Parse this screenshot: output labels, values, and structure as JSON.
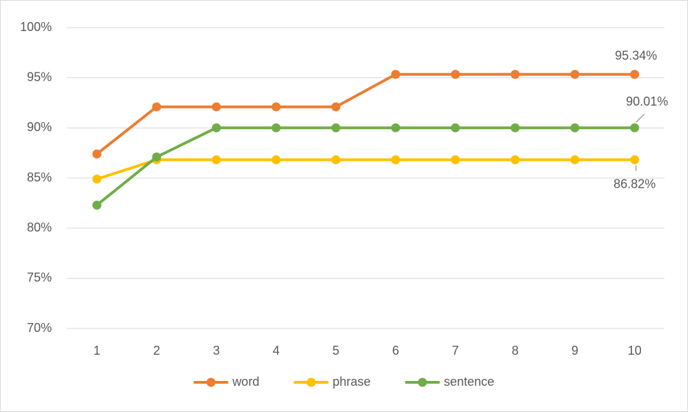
{
  "chart_data": {
    "type": "line",
    "categories": [
      1,
      2,
      3,
      4,
      5,
      6,
      7,
      8,
      9,
      10
    ],
    "series": [
      {
        "name": "word",
        "color": "#ED7D31",
        "values": [
          87.4,
          92.1,
          92.1,
          92.1,
          92.1,
          95.34,
          95.34,
          95.34,
          95.34,
          95.34
        ],
        "value_labels": [
          null,
          null,
          null,
          null,
          null,
          null,
          null,
          null,
          null,
          "95.34%"
        ]
      },
      {
        "name": "phrase",
        "color": "#FFC000",
        "values": [
          84.9,
          86.82,
          86.82,
          86.82,
          86.82,
          86.82,
          86.82,
          86.82,
          86.82,
          86.82
        ],
        "value_labels": [
          null,
          null,
          null,
          null,
          null,
          null,
          null,
          null,
          null,
          "86.82%"
        ]
      },
      {
        "name": "sentence",
        "color": "#70AD47",
        "values": [
          82.3,
          87.1,
          90.01,
          90.01,
          90.01,
          90.01,
          90.01,
          90.01,
          90.01,
          90.01
        ],
        "value_labels": [
          null,
          null,
          null,
          null,
          null,
          null,
          null,
          null,
          null,
          "90.01%"
        ]
      }
    ],
    "ylim": [
      70,
      100
    ],
    "yticks": [
      {
        "value": 70,
        "label": "70%"
      },
      {
        "value": 75,
        "label": "75%"
      },
      {
        "value": 80,
        "label": "80%"
      },
      {
        "value": 85,
        "label": "85%"
      },
      {
        "value": 90,
        "label": "90%"
      },
      {
        "value": 95,
        "label": "95%"
      },
      {
        "value": 100,
        "label": "100%"
      }
    ],
    "grid": true,
    "legend": "bottom"
  }
}
